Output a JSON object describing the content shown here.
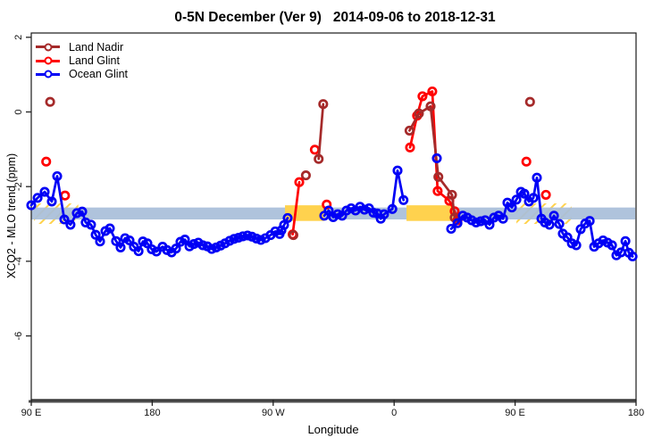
{
  "title": "0-5N December (Ver 9)   2014-09-06 to 2018-12-31",
  "legend": {
    "items": [
      {
        "label": "Land Nadir",
        "color": "#A52A2A"
      },
      {
        "label": "Land Glint",
        "color": "#FF0000"
      },
      {
        "label": "Ocean Glint",
        "color": "#0000F5"
      }
    ]
  },
  "chart_data": {
    "type": "line",
    "title": "0-5N December (Ver 9)   2014-09-06 to 2018-12-31",
    "xlabel": "Longitude",
    "ylabel": "XCO2 - MLO trend (ppm)",
    "x_axis": {
      "range": [
        90,
        540
      ],
      "note": "longitude unwrapped eastward: 90E -> 180 -> 90W -> 0 -> 90E -> 180",
      "ticks": [
        {
          "pos": 90,
          "label": "90 E"
        },
        {
          "pos": 180,
          "label": "180"
        },
        {
          "pos": 270,
          "label": "90 W"
        },
        {
          "pos": 360,
          "label": "0"
        },
        {
          "pos": 450,
          "label": "90 E"
        },
        {
          "pos": 540,
          "label": "180"
        }
      ]
    },
    "y_axis": {
      "range": [
        -7.7,
        2.1
      ],
      "ticks": [
        {
          "pos": 2,
          "label": "2"
        },
        {
          "pos": 0,
          "label": "0"
        },
        {
          "pos": -2,
          "label": "-2"
        },
        {
          "pos": -4,
          "label": "-4"
        },
        {
          "pos": -6,
          "label": "-6"
        }
      ]
    },
    "bands": [
      {
        "style": "hatch",
        "color": "#FFD24E",
        "x": [
          92,
          125
        ],
        "y": [
          -2.45,
          -3.0
        ]
      },
      {
        "style": "hatch",
        "color": "#FFD24E",
        "x": [
          451,
          492
        ],
        "y": [
          -2.45,
          -3.0
        ]
      },
      {
        "style": "solid",
        "color": "#A9BED9",
        "opacity": 0.93,
        "x": [
          90,
          539.4
        ],
        "y": [
          -2.56,
          -2.88
        ]
      },
      {
        "style": "solid",
        "color": "#FFD24E",
        "opacity": 1,
        "x": [
          278.8,
          308
        ],
        "y": [
          -2.5,
          -2.92
        ]
      },
      {
        "style": "solid",
        "color": "#FFD24E",
        "opacity": 1,
        "x": [
          369.2,
          403.8
        ],
        "y": [
          -2.5,
          -2.92
        ]
      }
    ],
    "series": [
      {
        "name": "Land Nadir",
        "color": "#A52A2A",
        "marker": "open-circle",
        "draw_order": 2,
        "groups": [
          [
            [
              104,
              0.27
            ]
          ],
          [
            [
              285,
              -3.3
            ]
          ],
          [
            [
              294.3,
              -1.7
            ]
          ],
          [
            [
              303.8,
              -1.26
            ],
            [
              307.2,
              0.21
            ]
          ],
          [
            [
              371.4,
              -0.5
            ],
            [
              378.4,
              -0.04
            ],
            [
              387.1,
              0.15
            ],
            [
              392.9,
              -1.74
            ],
            [
              403.1,
              -2.22
            ],
            [
              405,
              -2.83
            ]
          ],
          [
            [
              461.1,
              0.27
            ]
          ]
        ]
      },
      {
        "name": "Land Glint",
        "color": "#FF0000",
        "marker": "open-circle",
        "draw_order": 1,
        "groups": [
          [
            [
              101.1,
              -1.33
            ]
          ],
          [
            [
              115.1,
              -2.24
            ]
          ],
          [
            [
              284.5,
              -3.28
            ],
            [
              289.4,
              -1.88
            ]
          ],
          [
            [
              301,
              -1.01
            ]
          ],
          [
            [
              309.8,
              -2.48
            ]
          ],
          [
            [
              371.8,
              -0.95
            ],
            [
              377.1,
              -0.1
            ],
            [
              381.1,
              0.42
            ],
            [
              388.4,
              0.55
            ],
            [
              392.4,
              -2.12
            ],
            [
              401.1,
              -2.38
            ],
            [
              405,
              -2.66
            ],
            [
              407.1,
              -2.9
            ]
          ],
          [
            [
              458.4,
              -1.33
            ]
          ],
          [
            [
              472.9,
              -2.22
            ]
          ]
        ]
      },
      {
        "name": "Ocean Glint",
        "color": "#0000F5",
        "marker": "open-circle",
        "draw_order": 3,
        "groups": [
          [
            [
              90,
              -2.5
            ],
            [
              94.7,
              -2.3
            ],
            [
              100,
              -2.14
            ],
            [
              105.3,
              -2.4
            ],
            [
              109.3,
              -1.72
            ],
            [
              114.6,
              -2.88
            ],
            [
              119.2,
              -3.02
            ],
            [
              123.9,
              -2.71
            ],
            [
              127.9,
              -2.67
            ],
            [
              130.5,
              -2.96
            ],
            [
              134.5,
              -3.02
            ],
            [
              137.9,
              -3.29
            ],
            [
              141.2,
              -3.47
            ],
            [
              145.2,
              -3.19
            ],
            [
              148.5,
              -3.12
            ],
            [
              153.1,
              -3.46
            ],
            [
              156.5,
              -3.63
            ],
            [
              159.8,
              -3.38
            ],
            [
              163.1,
              -3.44
            ],
            [
              166.4,
              -3.61
            ],
            [
              169.8,
              -3.73
            ],
            [
              173.1,
              -3.47
            ],
            [
              176.4,
              -3.52
            ],
            [
              179.7,
              -3.68
            ],
            [
              183.1,
              -3.74
            ],
            [
              187.7,
              -3.61
            ],
            [
              191,
              -3.7
            ],
            [
              194.4,
              -3.76
            ],
            [
              197.7,
              -3.66
            ],
            [
              201,
              -3.48
            ],
            [
              204.3,
              -3.42
            ],
            [
              207.7,
              -3.6
            ],
            [
              211,
              -3.54
            ],
            [
              214.3,
              -3.5
            ],
            [
              217.6,
              -3.57
            ],
            [
              221,
              -3.6
            ],
            [
              224.3,
              -3.67
            ],
            [
              227.6,
              -3.63
            ],
            [
              230.9,
              -3.58
            ],
            [
              234.2,
              -3.52
            ],
            [
              237.6,
              -3.45
            ],
            [
              240.9,
              -3.4
            ],
            [
              244.2,
              -3.37
            ],
            [
              247.5,
              -3.33
            ],
            [
              250.9,
              -3.31
            ],
            [
              254.2,
              -3.34
            ],
            [
              257.5,
              -3.39
            ],
            [
              260.8,
              -3.43
            ],
            [
              264.2,
              -3.38
            ],
            [
              268.1,
              -3.3
            ],
            [
              271.5,
              -3.2
            ],
            [
              274.8,
              -3.27
            ],
            [
              276.1,
              -3.17
            ],
            [
              278.1,
              -3.03
            ],
            [
              280.8,
              -2.84
            ]
          ],
          [
            [
              308,
              -2.78
            ],
            [
              311.3,
              -2.64
            ],
            [
              314.7,
              -2.82
            ],
            [
              318,
              -2.74
            ],
            [
              321.3,
              -2.78
            ],
            [
              324.6,
              -2.64
            ],
            [
              328,
              -2.58
            ],
            [
              331.3,
              -2.64
            ],
            [
              334.6,
              -2.54
            ],
            [
              337.9,
              -2.62
            ],
            [
              341.3,
              -2.58
            ],
            [
              344.6,
              -2.7
            ],
            [
              347.5,
              -2.72
            ],
            [
              350,
              -2.86
            ],
            [
              352.5,
              -2.74
            ],
            [
              358.7,
              -2.6
            ],
            [
              362.5,
              -1.57
            ],
            [
              367,
              -2.36
            ]
          ],
          [
            [
              391.8,
              -1.24
            ]
          ],
          [
            [
              402.4,
              -3.13
            ],
            [
              407.1,
              -2.98
            ],
            [
              411.1,
              -2.78
            ],
            [
              414.4,
              -2.83
            ],
            [
              417.7,
              -2.9
            ],
            [
              421,
              -2.96
            ],
            [
              424.4,
              -2.93
            ],
            [
              427.7,
              -2.9
            ],
            [
              431,
              -3.02
            ],
            [
              434.3,
              -2.83
            ],
            [
              437.7,
              -2.78
            ],
            [
              441,
              -2.86
            ],
            [
              444.3,
              -2.43
            ],
            [
              447.6,
              -2.56
            ],
            [
              451,
              -2.35
            ],
            [
              454.3,
              -2.14
            ],
            [
              456.9,
              -2.19
            ],
            [
              460.3,
              -2.4
            ],
            [
              463.6,
              -2.3
            ],
            [
              466.2,
              -1.76
            ],
            [
              469.6,
              -2.86
            ],
            [
              472.2,
              -2.96
            ],
            [
              475.6,
              -3.02
            ],
            [
              478.9,
              -2.78
            ],
            [
              482.9,
              -3.0
            ],
            [
              485.5,
              -3.26
            ],
            [
              488.9,
              -3.36
            ],
            [
              492.2,
              -3.52
            ],
            [
              495.5,
              -3.57
            ],
            [
              498.8,
              -3.14
            ],
            [
              502.2,
              -2.99
            ],
            [
              505.5,
              -2.92
            ],
            [
              508.8,
              -3.61
            ],
            [
              512.1,
              -3.52
            ],
            [
              515.5,
              -3.44
            ],
            [
              518.8,
              -3.5
            ],
            [
              522.1,
              -3.57
            ],
            [
              525.4,
              -3.84
            ],
            [
              528.8,
              -3.76
            ],
            [
              532.1,
              -3.46
            ],
            [
              534.7,
              -3.77
            ],
            [
              537.4,
              -3.87
            ]
          ]
        ]
      }
    ]
  }
}
